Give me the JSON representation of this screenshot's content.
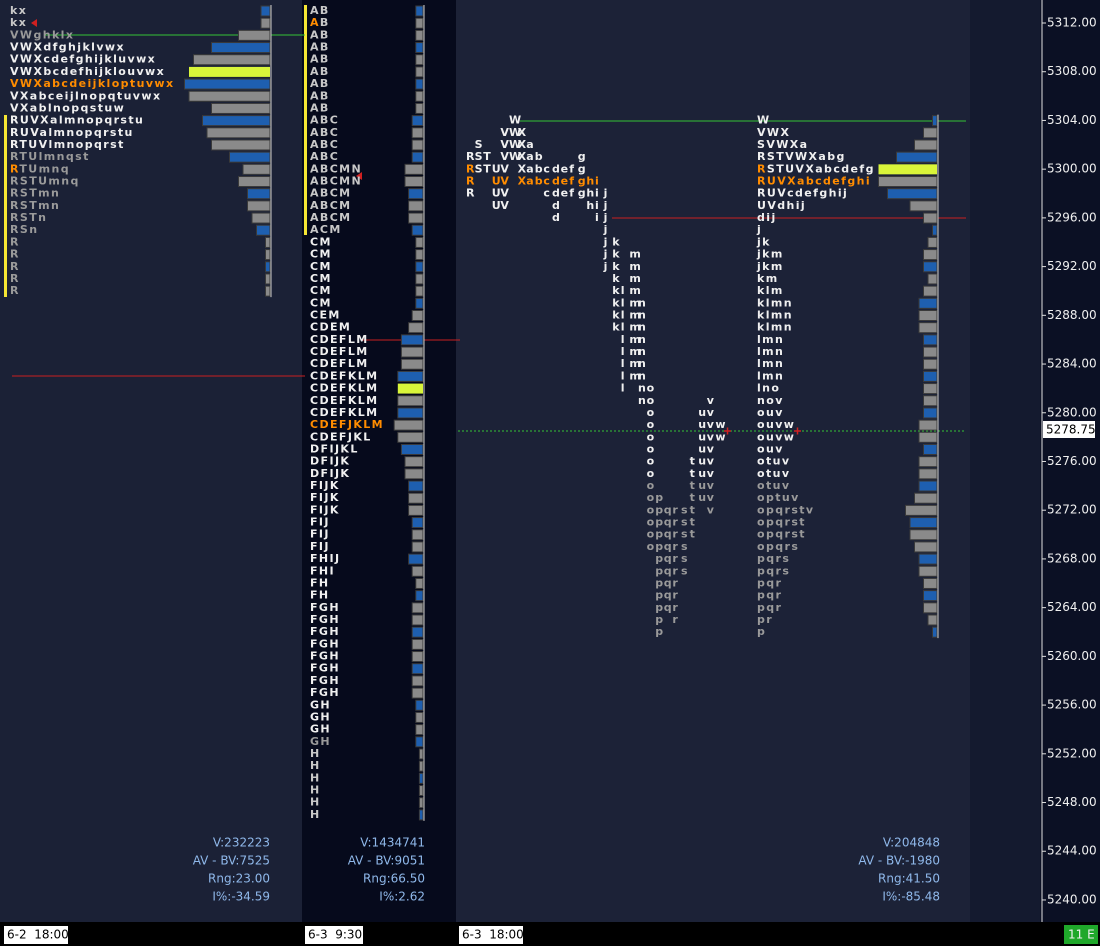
{
  "price_axis": {
    "labels": [
      "5312.00",
      "5308.00",
      "5304.00",
      "5300.00",
      "5296.00",
      "5292.00",
      "5288.00",
      "5284.00",
      "5280.00",
      "5276.00",
      "5272.00",
      "5268.00",
      "5264.00",
      "5260.00",
      "5256.00",
      "5252.00",
      "5248.00",
      "5244.00",
      "5240.00"
    ],
    "current_price": "5278.75"
  },
  "session_badge": "11 E",
  "panels": [
    {
      "date": "6-2  18:00",
      "stats": [
        "V:232223",
        "AV - BV:7525",
        "Rng:23.00",
        "I%:-34.59"
      ],
      "rows": [
        {
          "text": "kx",
          "color": "#c8c8c8"
        },
        {
          "text": "kx",
          "color": "#c8c8c8"
        },
        {
          "text": "VWghklx",
          "color": "#9a9a9a"
        },
        {
          "text": "VWXdfghjklvwx",
          "color": "#f0f0f0"
        },
        {
          "text": "VWXcdefghijkluvwx",
          "color": "#f0f0f0"
        },
        {
          "text": "VWXbcdefhijklouvwx",
          "color": "#f0f0f0",
          "poc": true
        },
        {
          "text": "VWXabcdeijkloptuvwx",
          "color": "#ff8c00"
        },
        {
          "text": "VXabceijlnopqtuvwx",
          "color": "#f0f0f0"
        },
        {
          "text": "VXablnopqstuw",
          "color": "#f0f0f0"
        },
        {
          "text": "RUVXalmnopqrstu",
          "color": "#f0f0f0"
        },
        {
          "text": "RUValmnopqrstu",
          "color": "#f0f0f0"
        },
        {
          "text": "RTUVlmnopqrst",
          "color": "#f0f0f0"
        },
        {
          "text": "RTUlmnqst",
          "color": "#9a9a9a"
        },
        {
          "text": "RTUmnq",
          "color": "#9a9a9a",
          "first": "#ff8c00"
        },
        {
          "text": "RSTUmnq",
          "color": "#9a9a9a"
        },
        {
          "text": "RSTmn",
          "color": "#9a9a9a"
        },
        {
          "text": "RSTmn",
          "color": "#9a9a9a"
        },
        {
          "text": "RSTn",
          "color": "#9a9a9a"
        },
        {
          "text": "RSn",
          "color": "#9a9a9a"
        },
        {
          "text": "R",
          "color": "#9a9a9a"
        },
        {
          "text": "R",
          "color": "#9a9a9a"
        },
        {
          "text": "R",
          "color": "#9a9a9a"
        },
        {
          "text": "R",
          "color": "#9a9a9a"
        },
        {
          "text": "R",
          "color": "#9a9a9a"
        }
      ]
    },
    {
      "date": "6-3  9:30",
      "stats": [
        "V:1434741",
        "AV - BV:9051",
        "Rng:66.50",
        "I%:2.62"
      ],
      "rows": [
        {
          "text": "AB",
          "color": "#c8c8c8"
        },
        {
          "text": "AB",
          "color": "#c8c8c8",
          "first": "#ff8c00"
        },
        {
          "text": "AB",
          "color": "#c8c8c8"
        },
        {
          "text": "AB",
          "color": "#c8c8c8"
        },
        {
          "text": "AB",
          "color": "#c8c8c8"
        },
        {
          "text": "AB",
          "color": "#c8c8c8"
        },
        {
          "text": "AB",
          "color": "#c8c8c8"
        },
        {
          "text": "AB",
          "color": "#c8c8c8"
        },
        {
          "text": "AB",
          "color": "#c8c8c8"
        },
        {
          "text": "ABC",
          "color": "#c8c8c8"
        },
        {
          "text": "ABC",
          "color": "#c8c8c8"
        },
        {
          "text": "ABC",
          "color": "#c8c8c8"
        },
        {
          "text": "ABC",
          "color": "#c8c8c8"
        },
        {
          "text": "ABCMN",
          "color": "#c8c8c8"
        },
        {
          "text": "ABCMN",
          "color": "#c8c8c8"
        },
        {
          "text": "ABCM",
          "color": "#c8c8c8"
        },
        {
          "text": "ABCM",
          "color": "#c8c8c8"
        },
        {
          "text": "ABCM",
          "color": "#c8c8c8"
        },
        {
          "text": "ACM",
          "color": "#c8c8c8"
        },
        {
          "text": "CM",
          "color": "#f0f0f0"
        },
        {
          "text": "CM",
          "color": "#f0f0f0"
        },
        {
          "text": "CM",
          "color": "#f0f0f0"
        },
        {
          "text": "CM",
          "color": "#f0f0f0"
        },
        {
          "text": "CM",
          "color": "#f0f0f0"
        },
        {
          "text": "CM",
          "color": "#f0f0f0"
        },
        {
          "text": "CEM",
          "color": "#f0f0f0"
        },
        {
          "text": "CDEM",
          "color": "#f0f0f0"
        },
        {
          "text": "CDEFLM",
          "color": "#f0f0f0"
        },
        {
          "text": "CDEFLM",
          "color": "#f0f0f0"
        },
        {
          "text": "CDEFLM",
          "color": "#f0f0f0"
        },
        {
          "text": "CDEFKLM",
          "color": "#f0f0f0"
        },
        {
          "text": "CDEFKLM",
          "color": "#f0f0f0",
          "poc": true
        },
        {
          "text": "CDEFKLM",
          "color": "#f0f0f0"
        },
        {
          "text": "CDEFKLM",
          "color": "#f0f0f0"
        },
        {
          "text": "CDEFJKLM",
          "color": "#ff8c00"
        },
        {
          "text": "CDEFJKL",
          "color": "#f0f0f0"
        },
        {
          "text": "DFIJKL",
          "color": "#f0f0f0"
        },
        {
          "text": "DFIJK",
          "color": "#f0f0f0"
        },
        {
          "text": "DFIJK",
          "color": "#f0f0f0"
        },
        {
          "text": "FIJK",
          "color": "#f0f0f0"
        },
        {
          "text": "FIJK",
          "color": "#f0f0f0"
        },
        {
          "text": "FIJK",
          "color": "#f0f0f0"
        },
        {
          "text": "FIJ",
          "color": "#f0f0f0"
        },
        {
          "text": "FIJ",
          "color": "#f0f0f0"
        },
        {
          "text": "FIJ",
          "color": "#f0f0f0"
        },
        {
          "text": "FHIJ",
          "color": "#f0f0f0"
        },
        {
          "text": "FHI",
          "color": "#f0f0f0"
        },
        {
          "text": "FH",
          "color": "#f0f0f0"
        },
        {
          "text": "FH",
          "color": "#f0f0f0"
        },
        {
          "text": "FGH",
          "color": "#f0f0f0"
        },
        {
          "text": "FGH",
          "color": "#f0f0f0"
        },
        {
          "text": "FGH",
          "color": "#f0f0f0"
        },
        {
          "text": "FGH",
          "color": "#f0f0f0"
        },
        {
          "text": "FGH",
          "color": "#f0f0f0"
        },
        {
          "text": "FGH",
          "color": "#f0f0f0"
        },
        {
          "text": "FGH",
          "color": "#f0f0f0"
        },
        {
          "text": "FGH",
          "color": "#f0f0f0"
        },
        {
          "text": "GH",
          "color": "#f0f0f0"
        },
        {
          "text": "GH",
          "color": "#f0f0f0"
        },
        {
          "text": "GH",
          "color": "#f0f0f0"
        },
        {
          "text": "GH",
          "color": "#9a9a9a"
        },
        {
          "text": "H",
          "color": "#c8c8c8"
        },
        {
          "text": "H",
          "color": "#c8c8c8"
        },
        {
          "text": "H",
          "color": "#c8c8c8"
        },
        {
          "text": "H",
          "color": "#c8c8c8"
        },
        {
          "text": "H",
          "color": "#c8c8c8"
        },
        {
          "text": "H",
          "color": "#c8c8c8"
        }
      ]
    },
    {
      "date": "6-3  18:00",
      "stats": [
        "V:204848",
        "AV - BV:-1980",
        "Rng:41.50",
        "I%:-85.48"
      ],
      "rows": [
        {
          "text": "W",
          "color": "#f0f0f0"
        },
        {
          "text": "VWX",
          "color": "#f0f0f0"
        },
        {
          "text": "SVWXa",
          "color": "#f0f0f0"
        },
        {
          "text": "RSTVWXabg",
          "color": "#f0f0f0"
        },
        {
          "text": "RSTUVXabcdefg",
          "color": "#f0f0f0",
          "first": "#ff8c00",
          "poc": true
        },
        {
          "text": "RUVXabcdefghi",
          "color": "#ff8c00"
        },
        {
          "text": "RUVcdefghij",
          "color": "#f0f0f0"
        },
        {
          "text": "UVdhij",
          "color": "#f0f0f0"
        },
        {
          "text": "dij",
          "color": "#f0f0f0"
        },
        {
          "text": "j",
          "color": "#f0f0f0"
        },
        {
          "text": "jk",
          "color": "#f0f0f0"
        },
        {
          "text": "jkm",
          "color": "#f0f0f0"
        },
        {
          "text": "jkm",
          "color": "#f0f0f0"
        },
        {
          "text": "km",
          "color": "#f0f0f0"
        },
        {
          "text": "klm",
          "color": "#f0f0f0"
        },
        {
          "text": "klmn",
          "color": "#f0f0f0"
        },
        {
          "text": "klmn",
          "color": "#f0f0f0"
        },
        {
          "text": "klmn",
          "color": "#f0f0f0"
        },
        {
          "text": "lmn",
          "color": "#f0f0f0"
        },
        {
          "text": "lmn",
          "color": "#f0f0f0"
        },
        {
          "text": "lmn",
          "color": "#f0f0f0"
        },
        {
          "text": "lmn",
          "color": "#f0f0f0"
        },
        {
          "text": "lno",
          "color": "#f0f0f0"
        },
        {
          "text": "nov",
          "color": "#f0f0f0"
        },
        {
          "text": "ouv",
          "color": "#f0f0f0"
        },
        {
          "text": "ouvw",
          "color": "#f0f0f0"
        },
        {
          "text": "ouvw",
          "color": "#f0f0f0"
        },
        {
          "text": "ouv",
          "color": "#f0f0f0"
        },
        {
          "text": "otuv",
          "color": "#f0f0f0"
        },
        {
          "text": "otuv",
          "color": "#f0f0f0"
        },
        {
          "text": "otuv",
          "color": "#9a9a9a"
        },
        {
          "text": "optuv",
          "color": "#9a9a9a"
        },
        {
          "text": "opqrstv",
          "color": "#9a9a9a"
        },
        {
          "text": "opqrst",
          "color": "#9a9a9a"
        },
        {
          "text": "opqrst",
          "color": "#9a9a9a"
        },
        {
          "text": "opqrs",
          "color": "#9a9a9a"
        },
        {
          "text": "pqrs",
          "color": "#9a9a9a"
        },
        {
          "text": "pqrs",
          "color": "#9a9a9a"
        },
        {
          "text": "pqr",
          "color": "#9a9a9a"
        },
        {
          "text": "pqr",
          "color": "#9a9a9a"
        },
        {
          "text": "pqr",
          "color": "#9a9a9a"
        },
        {
          "text": "pr",
          "color": "#9a9a9a"
        },
        {
          "text": "p",
          "color": "#9a9a9a"
        }
      ]
    }
  ]
}
